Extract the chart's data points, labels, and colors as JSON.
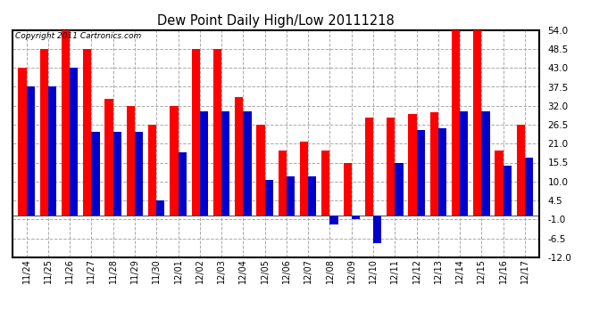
{
  "title": "Dew Point Daily High/Low 20111218",
  "copyright": "Copyright 2011 Cartronics.com",
  "dates": [
    "11/24",
    "11/25",
    "11/26",
    "11/27",
    "11/28",
    "11/29",
    "11/30",
    "12/01",
    "12/02",
    "12/03",
    "12/04",
    "12/05",
    "12/06",
    "12/07",
    "12/08",
    "12/09",
    "12/10",
    "12/11",
    "12/12",
    "12/13",
    "12/14",
    "12/15",
    "12/16",
    "12/17"
  ],
  "high": [
    43.0,
    48.5,
    54.0,
    48.5,
    34.0,
    32.0,
    26.5,
    32.0,
    48.5,
    48.5,
    34.5,
    26.5,
    19.0,
    21.5,
    19.0,
    15.5,
    28.5,
    28.5,
    29.5,
    30.0,
    54.0,
    54.0,
    19.0,
    26.5
  ],
  "low": [
    37.5,
    37.5,
    43.0,
    24.5,
    24.5,
    24.5,
    4.5,
    18.5,
    30.5,
    30.5,
    30.5,
    10.5,
    11.5,
    11.5,
    -2.5,
    -1.0,
    -8.0,
    15.5,
    25.0,
    25.5,
    30.5,
    30.5,
    14.5,
    17.0
  ],
  "high_color": "#ff0000",
  "low_color": "#0000cc",
  "bg_color": "#ffffff",
  "grid_color": "#aaaaaa",
  "ylim_min": -12.0,
  "ylim_max": 54.0,
  "yticks": [
    -12.0,
    -6.5,
    -1.0,
    4.5,
    10.0,
    15.5,
    21.0,
    26.5,
    32.0,
    37.5,
    43.0,
    48.5,
    54.0
  ],
  "bar_width": 0.38,
  "figwidth": 6.9,
  "figheight": 3.75,
  "dpi": 100
}
